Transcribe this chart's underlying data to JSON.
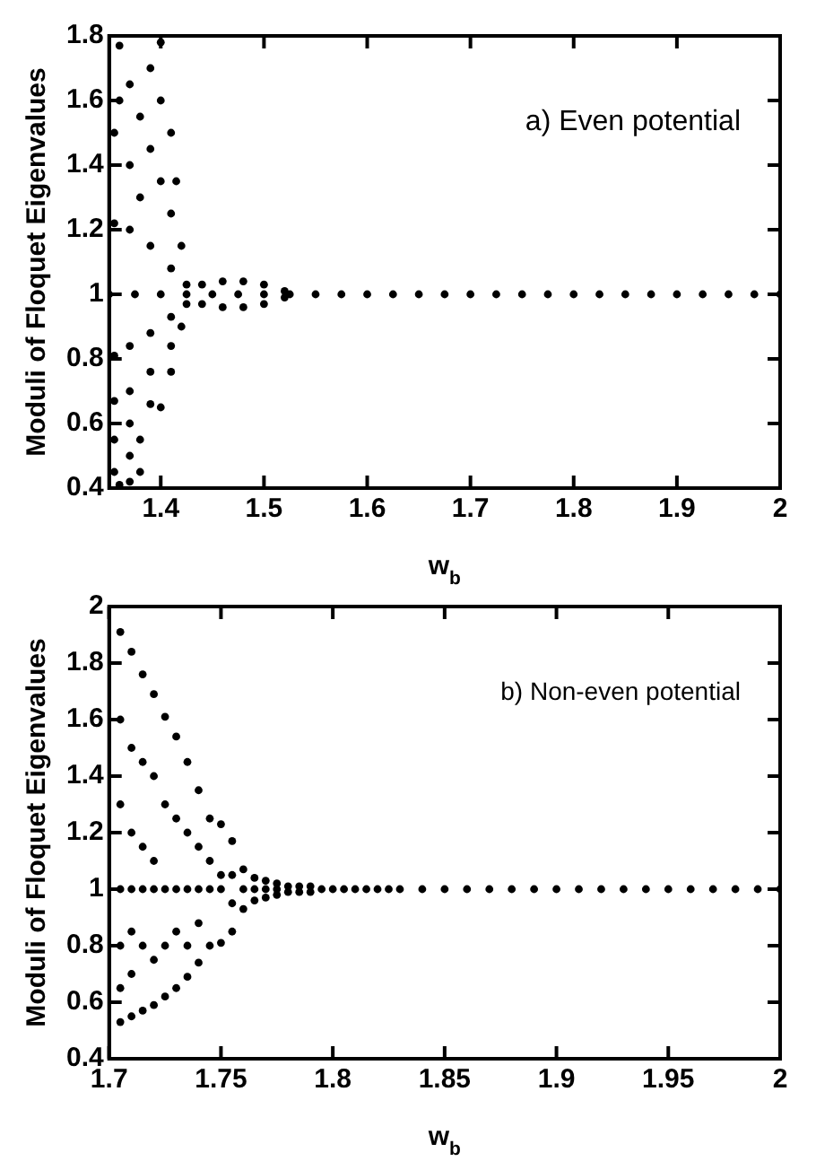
{
  "chart_data": [
    {
      "type": "scatter",
      "xlabel": "w$_{b}$",
      "ylabel": "Moduli of Floquet Eigenvalues",
      "annotations": [
        "a) Even potential"
      ],
      "xlim": [
        1.35,
        2
      ],
      "xticks": [
        1.4,
        1.5,
        1.6,
        1.7,
        1.8,
        1.9,
        2
      ],
      "ylim": [
        0.4,
        1.8
      ],
      "yticks": [
        0.4,
        0.6,
        0.8,
        1,
        1.2,
        1.4,
        1.6,
        1.8
      ],
      "grid": false,
      "marker": "circle",
      "series": [
        {
          "color": "#000000",
          "x": [
            1.35,
            1.375,
            1.4,
            1.425,
            1.45,
            1.475,
            1.5,
            1.525,
            1.55,
            1.575,
            1.6,
            1.625,
            1.65,
            1.675,
            1.7,
            1.725,
            1.75,
            1.775,
            1.8,
            1.825,
            1.85,
            1.875,
            1.9,
            1.925,
            1.95,
            1.975,
            2,
            1.44,
            1.46,
            1.48,
            1.5,
            1.52,
            1.44,
            1.46,
            1.48,
            1.5,
            1.52,
            1.355,
            1.37,
            1.39,
            1.41,
            1.425,
            1.355,
            1.37,
            1.39,
            1.41,
            1.425,
            1.355,
            1.37,
            1.39,
            1.41,
            1.42,
            1.355,
            1.37,
            1.39,
            1.41,
            1.355,
            1.37,
            1.38,
            1.4,
            1.36,
            1.37,
            1.38,
            1.355,
            1.36,
            1.37,
            1.38,
            1.39,
            1.4,
            1.41,
            1.42,
            1.4,
            1.4,
            1.41,
            1.415,
            1.37,
            1.36,
            1.39,
            1.38
          ],
          "values": [
            1,
            1,
            1,
            1,
            1,
            1,
            1,
            1,
            1,
            1,
            1,
            1,
            1,
            1,
            1,
            1,
            1,
            1,
            1,
            1,
            1,
            1,
            1,
            1,
            1,
            1,
            1,
            1.03,
            1.04,
            1.04,
            1.03,
            1.01,
            0.97,
            0.96,
            0.96,
            0.97,
            0.99,
            1.22,
            1.2,
            1.15,
            1.08,
            1.03,
            0.81,
            0.84,
            0.88,
            0.93,
            0.97,
            0.67,
            0.7,
            0.76,
            0.84,
            0.9,
            0.55,
            0.6,
            0.66,
            0.76,
            0.45,
            0.5,
            0.55,
            0.65,
            0.41,
            0.42,
            0.45,
            1.5,
            1.77,
            1.65,
            1.55,
            1.45,
            1.35,
            1.25,
            1.15,
            1.78,
            1.6,
            1.5,
            1.35,
            1.4,
            1.6,
            1.7,
            1.3
          ]
        }
      ]
    },
    {
      "type": "scatter",
      "xlabel": "w$_{b}$",
      "ylabel": "Moduli of Floquet Eigenvalues",
      "annotations": [
        "b) Non-even potential"
      ],
      "xlim": [
        1.7,
        2
      ],
      "xticks": [
        1.7,
        1.75,
        1.8,
        1.85,
        1.9,
        1.95,
        2
      ],
      "ylim": [
        0.4,
        2
      ],
      "yticks": [
        0.4,
        0.6,
        0.8,
        1,
        1.2,
        1.4,
        1.6,
        1.8,
        2
      ],
      "grid": false,
      "marker": "circle",
      "series": [
        {
          "color": "#000000",
          "x": [
            1.705,
            1.705,
            1.705,
            1.705,
            1.705,
            1.705,
            1.705,
            1.71,
            1.71,
            1.71,
            1.71,
            1.71,
            1.71,
            1.71,
            1.715,
            1.715,
            1.715,
            1.715,
            1.715,
            1.715,
            1.72,
            1.72,
            1.72,
            1.72,
            1.72,
            1.72,
            1.725,
            1.725,
            1.725,
            1.725,
            1.725,
            1.73,
            1.73,
            1.73,
            1.73,
            1.73,
            1.735,
            1.735,
            1.735,
            1.735,
            1.735,
            1.74,
            1.74,
            1.74,
            1.74,
            1.74,
            1.745,
            1.745,
            1.745,
            1.745,
            1.75,
            1.75,
            1.75,
            1.75,
            1.755,
            1.755,
            1.755,
            1.755,
            1.76,
            1.76,
            1.76,
            1.765,
            1.765,
            1.765,
            1.77,
            1.77,
            1.77,
            1.775,
            1.775,
            1.775,
            1.78,
            1.78,
            1.785,
            1.785,
            1.79,
            1.79,
            1.795,
            1.8,
            1.805,
            1.81,
            1.815,
            1.82,
            1.825,
            1.83,
            1.84,
            1.85,
            1.86,
            1.87,
            1.88,
            1.89,
            1.9,
            1.91,
            1.92,
            1.93,
            1.94,
            1.95,
            1.96,
            1.97,
            1.98,
            1.99,
            2
          ],
          "values": [
            1.91,
            1.6,
            1.3,
            1,
            0.8,
            0.65,
            0.53,
            1.84,
            1.5,
            1.2,
            1,
            0.85,
            0.7,
            0.55,
            1.76,
            1.45,
            1.15,
            1,
            0.8,
            0.57,
            1.69,
            1.4,
            1.1,
            1,
            0.75,
            0.59,
            1.61,
            1.3,
            1,
            0.8,
            0.62,
            1.54,
            1.25,
            1,
            0.85,
            0.65,
            1.45,
            1.2,
            1,
            0.8,
            0.69,
            1.35,
            1.15,
            1,
            0.88,
            0.74,
            1.25,
            1.1,
            1,
            0.8,
            1.23,
            1.05,
            1,
            0.81,
            1.17,
            1.05,
            0.95,
            0.85,
            1.07,
            1,
            0.93,
            1.04,
            1,
            0.96,
            1.03,
            1,
            0.97,
            1.02,
            1,
            0.98,
            1.01,
            0.99,
            1.01,
            0.99,
            1.01,
            0.99,
            1,
            1,
            1,
            1,
            1,
            1,
            1,
            1,
            1,
            1,
            1,
            1,
            1,
            1,
            1,
            1,
            1,
            1,
            1,
            1,
            1,
            1,
            1,
            1,
            1
          ]
        }
      ]
    }
  ]
}
